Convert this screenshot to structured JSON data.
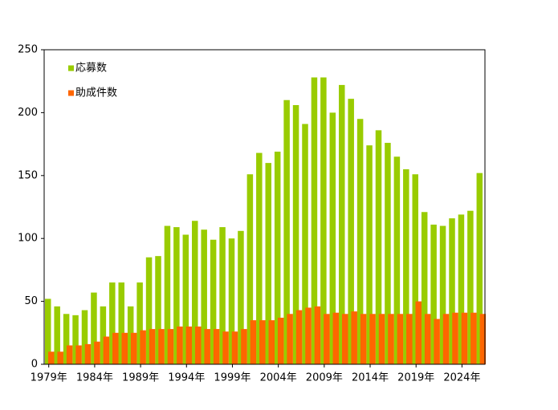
{
  "chart_data": {
    "type": "bar",
    "categories": [
      "1979年",
      null,
      null,
      null,
      null,
      "1984年",
      null,
      null,
      null,
      null,
      "1989年",
      null,
      null,
      null,
      null,
      "1994年",
      null,
      null,
      null,
      null,
      "1999年",
      null,
      null,
      null,
      null,
      "2004年",
      null,
      null,
      null,
      null,
      "2009年",
      null,
      null,
      null,
      null,
      "2014年",
      null,
      null,
      null,
      null,
      "2019年",
      null,
      null,
      null,
      null,
      "2024年",
      null,
      null
    ],
    "series": [
      {
        "name": "応募数",
        "color": "#99cc00",
        "values": [
          52,
          46,
          40,
          39,
          43,
          57,
          46,
          65,
          65,
          46,
          65,
          85,
          86,
          110,
          109,
          103,
          114,
          107,
          99,
          109,
          100,
          106,
          151,
          168,
          160,
          169,
          210,
          206,
          191,
          228,
          228,
          200,
          222,
          211,
          195,
          174,
          186,
          176,
          165,
          155,
          151,
          121,
          111,
          110,
          116,
          119,
          122,
          152
        ]
      },
      {
        "name": "助成件数",
        "color": "#ff6600",
        "values": [
          10,
          10,
          15,
          15,
          16,
          18,
          22,
          25,
          25,
          25,
          27,
          28,
          28,
          28,
          30,
          30,
          30,
          28,
          28,
          26,
          26,
          28,
          35,
          35,
          35,
          37,
          40,
          43,
          45,
          46,
          40,
          41,
          40,
          42,
          40,
          40,
          40,
          40,
          40,
          40,
          50,
          40,
          36,
          40,
          41,
          41,
          41,
          40
        ]
      }
    ],
    "ylim": [
      0,
      250
    ],
    "yticks": [
      0,
      50,
      100,
      150,
      200,
      250
    ],
    "legend": "upper left"
  }
}
